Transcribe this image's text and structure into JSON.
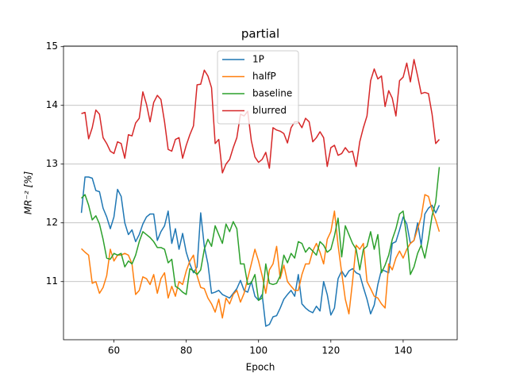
{
  "chart_data": {
    "type": "line",
    "title": "partial",
    "xlabel": "Epoch",
    "ylabel": "MR⁻² [%]",
    "x": [
      51,
      52,
      53,
      54,
      55,
      56,
      57,
      58,
      59,
      60,
      61,
      62,
      63,
      64,
      65,
      66,
      67,
      68,
      69,
      70,
      71,
      72,
      73,
      74,
      75,
      76,
      77,
      78,
      79,
      80,
      81,
      82,
      83,
      84,
      85,
      86,
      87,
      88,
      89,
      90,
      91,
      92,
      93,
      94,
      95,
      96,
      97,
      98,
      99,
      100,
      101,
      102,
      103,
      104,
      105,
      106,
      107,
      108,
      109,
      110,
      111,
      112,
      113,
      114,
      115,
      116,
      117,
      118,
      119,
      120,
      121,
      122,
      123,
      124,
      125,
      126,
      127,
      128,
      129,
      130,
      131,
      132,
      133,
      134,
      135,
      136,
      137,
      138,
      139,
      140,
      141,
      142,
      143,
      144,
      145,
      146,
      147,
      148,
      149,
      150
    ],
    "series": [
      {
        "name": "1P",
        "color": "#1f77b4",
        "values": [
          12.17,
          12.78,
          12.78,
          12.76,
          12.55,
          12.53,
          12.25,
          12.1,
          11.9,
          12.1,
          12.57,
          12.45,
          12.0,
          11.8,
          11.88,
          11.68,
          11.8,
          11.98,
          12.1,
          12.15,
          12.15,
          11.7,
          11.85,
          11.95,
          12.2,
          11.65,
          11.9,
          11.55,
          11.82,
          11.5,
          11.3,
          11.15,
          11.25,
          12.17,
          11.6,
          11.3,
          10.8,
          10.82,
          10.85,
          10.78,
          10.75,
          10.72,
          10.8,
          10.88,
          11.02,
          10.85,
          10.82,
          11.0,
          10.75,
          10.68,
          10.78,
          10.24,
          10.27,
          10.4,
          10.42,
          10.55,
          10.7,
          10.78,
          10.85,
          10.75,
          11.12,
          10.62,
          10.55,
          10.5,
          10.47,
          10.58,
          10.5,
          11.0,
          10.78,
          10.43,
          10.55,
          11.05,
          11.18,
          11.08,
          11.18,
          11.22,
          11.15,
          11.12,
          10.9,
          10.7,
          10.45,
          10.6,
          10.95,
          11.2,
          11.18,
          11.15,
          11.65,
          11.68,
          11.88,
          12.1,
          11.98,
          11.65,
          11.7,
          12.0,
          11.62,
          12.15,
          12.25,
          12.3,
          12.17,
          12.3
        ]
      },
      {
        "name": "halfP",
        "color": "#ff7f0e",
        "values": [
          11.56,
          11.5,
          11.45,
          10.97,
          11.0,
          10.8,
          10.9,
          11.1,
          11.55,
          11.35,
          11.45,
          11.45,
          11.48,
          11.45,
          11.3,
          10.78,
          10.85,
          11.08,
          11.05,
          10.95,
          11.12,
          10.8,
          11.05,
          11.15,
          10.72,
          10.92,
          10.75,
          11.0,
          10.95,
          11.18,
          11.35,
          11.45,
          11.1,
          10.9,
          10.88,
          10.72,
          10.62,
          10.48,
          10.7,
          10.38,
          10.72,
          10.62,
          10.78,
          10.85,
          10.65,
          10.8,
          11.05,
          11.3,
          11.55,
          11.35,
          11.1,
          10.8,
          11.2,
          11.3,
          11.6,
          11.05,
          11.28,
          11.0,
          10.92,
          10.85,
          10.85,
          11.12,
          11.3,
          11.3,
          11.52,
          11.65,
          11.5,
          11.3,
          11.72,
          11.85,
          12.2,
          11.62,
          11.15,
          10.7,
          10.45,
          11.0,
          11.62,
          11.55,
          11.65,
          11.0,
          10.88,
          10.75,
          10.72,
          10.62,
          10.55,
          11.3,
          11.2,
          11.4,
          11.52,
          11.4,
          11.55,
          11.65,
          11.7,
          11.9,
          12.1,
          12.48,
          12.45,
          12.22,
          12.05,
          11.85
        ]
      },
      {
        "name": "baseline",
        "color": "#2ca02c",
        "values": [
          12.42,
          12.48,
          12.3,
          12.05,
          12.12,
          11.98,
          11.72,
          11.4,
          11.38,
          11.48,
          11.45,
          11.48,
          11.25,
          11.35,
          11.3,
          11.45,
          11.68,
          11.85,
          11.8,
          11.75,
          11.68,
          11.58,
          11.58,
          11.55,
          11.32,
          11.38,
          10.92,
          10.88,
          10.82,
          10.78,
          11.22,
          11.18,
          11.12,
          11.2,
          11.55,
          11.72,
          11.6,
          11.95,
          11.8,
          11.65,
          11.98,
          11.85,
          12.02,
          11.9,
          11.3,
          11.3,
          10.95,
          10.98,
          11.12,
          10.68,
          10.72,
          11.3,
          10.97,
          10.95,
          10.97,
          11.1,
          11.45,
          11.32,
          11.48,
          11.4,
          11.68,
          11.65,
          11.5,
          11.58,
          11.52,
          11.45,
          11.68,
          11.62,
          11.5,
          11.55,
          11.78,
          12.08,
          11.42,
          11.95,
          11.8,
          11.65,
          11.55,
          11.2,
          11.55,
          11.6,
          11.85,
          11.55,
          11.8,
          11.15,
          11.28,
          11.45,
          11.72,
          11.9,
          12.15,
          12.2,
          11.75,
          11.12,
          11.25,
          11.48,
          11.62,
          11.4,
          11.72,
          12.12,
          12.35,
          12.95
        ]
      },
      {
        "name": "blurred",
        "color": "#d62728",
        "values": [
          13.86,
          13.88,
          13.43,
          13.62,
          13.92,
          13.85,
          13.45,
          13.35,
          13.22,
          13.18,
          13.38,
          13.35,
          13.1,
          13.5,
          13.48,
          13.7,
          13.78,
          14.23,
          14.02,
          13.72,
          14.05,
          14.17,
          14.1,
          13.72,
          13.25,
          13.22,
          13.42,
          13.45,
          13.1,
          13.32,
          13.5,
          13.65,
          14.35,
          14.36,
          14.6,
          14.5,
          14.3,
          13.35,
          13.42,
          12.85,
          13.0,
          13.08,
          13.28,
          13.45,
          13.85,
          13.82,
          13.9,
          13.4,
          13.12,
          13.03,
          13.08,
          13.2,
          12.93,
          13.62,
          13.58,
          13.56,
          13.52,
          13.36,
          13.62,
          13.72,
          13.72,
          13.62,
          13.78,
          13.72,
          13.38,
          13.45,
          13.55,
          13.45,
          12.96,
          13.28,
          13.32,
          13.15,
          13.18,
          13.28,
          13.2,
          13.22,
          12.96,
          13.38,
          13.62,
          13.82,
          14.42,
          14.62,
          14.45,
          14.5,
          13.98,
          14.25,
          14.12,
          13.82,
          14.42,
          14.48,
          14.72,
          14.4,
          14.78,
          14.5,
          14.2,
          14.22,
          14.2,
          13.85,
          13.35,
          13.42
        ]
      }
    ],
    "xlim": [
      46.05,
      154.95
    ],
    "xticks": [
      60,
      80,
      100,
      120,
      140
    ],
    "ylim": [
      10.01,
      15.01
    ],
    "yticks": [
      11,
      12,
      13,
      14,
      15
    ],
    "grid": "y",
    "legend": "upper center"
  }
}
